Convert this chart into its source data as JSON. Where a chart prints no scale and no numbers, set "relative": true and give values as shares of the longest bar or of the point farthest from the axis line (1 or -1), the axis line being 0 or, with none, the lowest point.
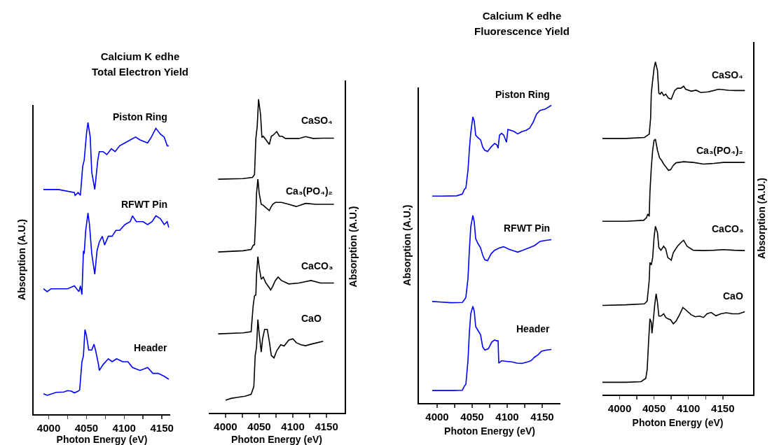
{
  "chart_data": [
    {
      "type": "line",
      "title": "Calcium K edhe\nTotal Electron Yield",
      "xlabel": "Photon Energy (eV)",
      "ylabel": "Absorption (A.U.)",
      "relative": true,
      "grid": false,
      "legend": false,
      "tick_labels": "x",
      "xlim": [
        3980,
        4161
      ],
      "xticks": [
        4000,
        {
          "value": 4025,
          "label": null
        },
        4050,
        {
          "value": 4075,
          "label": null
        },
        4100,
        {
          "value": 4125,
          "label": null
        },
        4150
      ],
      "series": [
        {
          "name": "Piston Ring",
          "color": "#0000ff",
          "x": [
            3993,
            4013,
            4034,
            4035,
            4039,
            4042,
            4045,
            4047,
            4050,
            4052,
            4055,
            4057,
            4061,
            4065,
            4067,
            4072,
            4077,
            4083,
            4088,
            4094,
            4101,
            4108,
            4115,
            4121,
            4131,
            4136,
            4142,
            4148,
            4153,
            4157,
            4159
          ],
          "values": [
            0.77,
            0.77,
            0.76,
            0.75,
            0.76,
            0.75,
            0.85,
            0.87,
            0.96,
            1.0,
            0.95,
            0.83,
            0.77,
            0.87,
            0.9,
            0.9,
            0.89,
            0.91,
            0.9,
            0.92,
            0.93,
            0.94,
            0.95,
            0.94,
            0.93,
            0.95,
            0.98,
            0.96,
            0.95,
            0.92,
            0.92
          ]
        },
        {
          "name": "RFWT Pin",
          "color": "#0000ff",
          "x": [
            3993,
            3998,
            4003,
            4017,
            4025,
            4034,
            4037,
            4040,
            4042,
            4044,
            4046,
            4047,
            4049,
            4052,
            4054,
            4057,
            4061,
            4064,
            4067,
            4071,
            4074,
            4079,
            4084,
            4089,
            4094,
            4101,
            4108,
            4111,
            4116,
            4125,
            4131,
            4137,
            4142,
            4148,
            4153,
            4157,
            4159
          ],
          "values": [
            0.43,
            0.42,
            0.43,
            0.43,
            0.43,
            0.44,
            0.43,
            0.42,
            0.44,
            0.41,
            0.56,
            0.55,
            0.63,
            0.69,
            0.65,
            0.55,
            0.48,
            0.56,
            0.59,
            0.61,
            0.58,
            0.61,
            0.61,
            0.63,
            0.63,
            0.65,
            0.66,
            0.68,
            0.66,
            0.66,
            0.65,
            0.66,
            0.68,
            0.67,
            0.65,
            0.66,
            0.64
          ]
        },
        {
          "name": "Header",
          "color": "#0000ff",
          "x": [
            3993,
            3998,
            4010,
            4020,
            4025,
            4030,
            4034,
            4039,
            4041,
            4044,
            4046,
            4048,
            4050,
            4053,
            4057,
            4060,
            4062,
            4066,
            4067,
            4072,
            4079,
            4084,
            4090,
            4098,
            4105,
            4111,
            4121,
            4131,
            4138,
            4145,
            4153,
            4159
          ],
          "values": [
            0.07,
            0.065,
            0.075,
            0.076,
            0.081,
            0.079,
            0.073,
            0.079,
            0.083,
            0.18,
            0.2,
            0.29,
            0.27,
            0.22,
            0.22,
            0.24,
            0.22,
            0.17,
            0.15,
            0.17,
            0.19,
            0.18,
            0.19,
            0.18,
            0.18,
            0.16,
            0.15,
            0.16,
            0.14,
            0.14,
            0.13,
            0.12
          ]
        }
      ]
    },
    {
      "type": "line",
      "xlabel": "Photon Energy (eV)",
      "y2label": "Absorption (A.U.)",
      "relative": true,
      "grid": false,
      "legend": false,
      "tick_labels": "x",
      "xlim": [
        3975,
        4177
      ],
      "xticks": [
        4000,
        {
          "value": 4025,
          "label": null
        },
        4050,
        {
          "value": 4075,
          "label": null
        },
        4100,
        {
          "value": 4125,
          "label": null
        },
        4150
      ],
      "series": [
        {
          "name": "CaSO₄",
          "color": "#000000",
          "axis": "y2",
          "x": [
            3989,
            4026,
            4040,
            4043,
            4045,
            4047,
            4049,
            4052,
            4054,
            4056,
            4060,
            4065,
            4068,
            4071,
            4076,
            4080,
            4084,
            4089,
            4096,
            4109,
            4119,
            4130,
            4145,
            4161
          ],
          "values": [
            0.745,
            0.747,
            0.751,
            0.76,
            0.875,
            0.913,
            1.0,
            0.951,
            0.878,
            0.882,
            0.871,
            0.856,
            0.882,
            0.886,
            0.897,
            0.882,
            0.882,
            0.875,
            0.875,
            0.875,
            0.881,
            0.875,
            0.876,
            0.876
          ]
        },
        {
          "name": "Ca₃(PO₄)₂",
          "color": "#000000",
          "axis": "y2",
          "x": [
            3989,
            4026,
            4038,
            4041,
            4043,
            4045,
            4046,
            4048,
            4050,
            4053,
            4056,
            4060,
            4065,
            4067,
            4070,
            4074,
            4083,
            4094,
            4105,
            4119,
            4134,
            4161
          ],
          "values": [
            0.513,
            0.517,
            0.521,
            0.534,
            0.536,
            0.631,
            0.7,
            0.745,
            0.7,
            0.665,
            0.662,
            0.654,
            0.645,
            0.654,
            0.665,
            0.671,
            0.671,
            0.665,
            0.658,
            0.668,
            0.665,
            0.665
          ]
        },
        {
          "name": "CaCO₃",
          "color": "#000000",
          "axis": "y2",
          "x": [
            3989,
            4026,
            4038,
            4041,
            4043,
            4045,
            4046,
            4048,
            4050,
            4053,
            4056,
            4060,
            4065,
            4067,
            4070,
            4074,
            4078,
            4083,
            4094,
            4109,
            4127,
            4141,
            4161
          ],
          "values": [
            0.252,
            0.255,
            0.259,
            0.342,
            0.373,
            0.376,
            0.441,
            0.498,
            0.464,
            0.426,
            0.433,
            0.414,
            0.399,
            0.392,
            0.403,
            0.422,
            0.433,
            0.422,
            0.411,
            0.414,
            0.422,
            0.414,
            0.414
          ]
        },
        {
          "name": "CaO",
          "color": "#000000",
          "axis": "y2",
          "x": [
            4000,
            4008,
            4017,
            4029,
            4038,
            4042,
            4044,
            4046,
            4048,
            4050,
            4053,
            4055,
            4058,
            4062,
            4065,
            4068,
            4072,
            4076,
            4082,
            4087,
            4094,
            4100,
            4105,
            4112,
            4119,
            4127,
            4137,
            4145
          ],
          "values": [
            0.04,
            0.046,
            0.049,
            0.053,
            0.059,
            0.084,
            0.183,
            0.209,
            0.297,
            0.251,
            0.194,
            0.236,
            0.266,
            0.266,
            0.228,
            0.183,
            0.175,
            0.198,
            0.217,
            0.213,
            0.232,
            0.236,
            0.224,
            0.217,
            0.214,
            0.219,
            0.224,
            0.228
          ]
        }
      ]
    },
    {
      "type": "line",
      "title": "Calcium K edhe\nFluorescence Yield",
      "xlabel": "Photon Energy (eV)",
      "ylabel": "Absorption (A.U.)",
      "relative": true,
      "grid": false,
      "legend": false,
      "tick_labels": "x",
      "xlim": [
        3974,
        4176
      ],
      "xticks": [
        4000,
        {
          "value": 4025,
          "label": null
        },
        4050,
        {
          "value": 4075,
          "label": null
        },
        4100,
        {
          "value": 4125,
          "label": null
        },
        4150
      ],
      "series": [
        {
          "name": "Piston Ring",
          "color": "#0000ff",
          "x": [
            3993,
            4006,
            4028,
            4036,
            4039,
            4041,
            4044,
            4046,
            4048,
            4051,
            4053,
            4055,
            4058,
            4062,
            4065,
            4068,
            4072,
            4077,
            4082,
            4085,
            4087,
            4089,
            4092,
            4095,
            4099,
            4101,
            4105,
            4110,
            4115,
            4121,
            4127,
            4132,
            4137,
            4142,
            4147,
            4154,
            4163
          ],
          "values": [
            0.695,
            0.695,
            0.696,
            0.702,
            0.718,
            0.722,
            0.781,
            0.852,
            0.908,
            0.961,
            0.947,
            0.9,
            0.892,
            0.884,
            0.86,
            0.849,
            0.845,
            0.86,
            0.872,
            0.868,
            0.856,
            0.9,
            0.906,
            0.9,
            0.876,
            0.919,
            0.916,
            0.912,
            0.904,
            0.912,
            0.916,
            0.923,
            0.943,
            0.971,
            0.983,
            0.987,
            1.0
          ]
        },
        {
          "name": "RFWT Pin",
          "color": "#0000ff",
          "x": [
            3993,
            4006,
            4020,
            4036,
            4039,
            4041,
            4044,
            4046,
            4048,
            4051,
            4053,
            4055,
            4058,
            4062,
            4065,
            4068,
            4072,
            4077,
            4082,
            4089,
            4095,
            4102,
            4107,
            4115,
            4122,
            4131,
            4139,
            4147,
            4154,
            4163
          ],
          "values": [
            0.341,
            0.339,
            0.337,
            0.338,
            0.347,
            0.355,
            0.418,
            0.513,
            0.592,
            0.63,
            0.608,
            0.552,
            0.537,
            0.521,
            0.497,
            0.481,
            0.478,
            0.501,
            0.513,
            0.521,
            0.525,
            0.517,
            0.513,
            0.507,
            0.513,
            0.521,
            0.529,
            0.543,
            0.546,
            0.549
          ]
        },
        {
          "name": "Header",
          "color": "#0000ff",
          "x": [
            3993,
            4006,
            4023,
            4036,
            4039,
            4041,
            4044,
            4046,
            4048,
            4051,
            4053,
            4055,
            4058,
            4062,
            4065,
            4068,
            4073,
            4078,
            4082,
            4085,
            4087,
            4088,
            4092,
            4099,
            4107,
            4114,
            4121,
            4129,
            4134,
            4139,
            4144,
            4149,
            4156,
            4163
          ],
          "values": [
            0.042,
            0.042,
            0.042,
            0.043,
            0.057,
            0.063,
            0.142,
            0.237,
            0.3,
            0.325,
            0.308,
            0.257,
            0.245,
            0.229,
            0.189,
            0.178,
            0.182,
            0.205,
            0.212,
            0.209,
            0.209,
            0.134,
            0.142,
            0.14,
            0.138,
            0.134,
            0.133,
            0.138,
            0.142,
            0.154,
            0.162,
            0.174,
            0.178,
            0.18
          ]
        }
      ]
    },
    {
      "type": "line",
      "xlabel": "Photon Energy (eV)",
      "y2label": "Absorption (A.U.)",
      "relative": true,
      "grid": false,
      "legend": false,
      "tick_labels": "x",
      "xlim": [
        3975,
        4194
      ],
      "xticks": [
        4000,
        {
          "value": 4025,
          "label": null
        },
        4050,
        {
          "value": 4075,
          "label": null
        },
        4100,
        {
          "value": 4125,
          "label": null
        },
        4150
      ],
      "series": [
        {
          "name": "CaSO₄",
          "color": "#000000",
          "axis": "y2",
          "x": [
            3975,
            4009,
            4036,
            4040,
            4043,
            4045,
            4046,
            4048,
            4050,
            4052,
            4055,
            4057,
            4059,
            4061,
            4064,
            4067,
            4071,
            4075,
            4080,
            4084,
            4089,
            4093,
            4096,
            4104,
            4111,
            4118,
            4129,
            4144,
            4158,
            4169,
            4182
          ],
          "values": [
            0.77,
            0.77,
            0.773,
            0.779,
            0.783,
            0.831,
            0.906,
            0.944,
            0.981,
            1.0,
            0.974,
            0.906,
            0.903,
            0.91,
            0.899,
            0.903,
            0.891,
            0.888,
            0.914,
            0.921,
            0.921,
            0.927,
            0.918,
            0.912,
            0.915,
            0.908,
            0.91,
            0.918,
            0.915,
            0.914,
            0.914
          ]
        },
        {
          "name": "Ca₃(PO₄)₂",
          "color": "#000000",
          "axis": "y2",
          "x": [
            3975,
            4009,
            4035,
            4039,
            4041,
            4043,
            4044,
            4046,
            4048,
            4050,
            4052,
            4055,
            4058,
            4061,
            4064,
            4067,
            4071,
            4074,
            4078,
            4082,
            4086,
            4093,
            4107,
            4122,
            4137,
            4151,
            4166,
            4182
          ],
          "values": [
            0.521,
            0.521,
            0.524,
            0.532,
            0.543,
            0.536,
            0.607,
            0.682,
            0.734,
            0.764,
            0.768,
            0.734,
            0.712,
            0.704,
            0.693,
            0.685,
            0.674,
            0.676,
            0.689,
            0.697,
            0.698,
            0.7,
            0.698,
            0.693,
            0.695,
            0.698,
            0.698,
            0.698
          ]
        },
        {
          "name": "CaCO₃",
          "color": "#000000",
          "axis": "y2",
          "x": [
            3975,
            4009,
            4036,
            4040,
            4043,
            4044,
            4046,
            4048,
            4050,
            4052,
            4055,
            4057,
            4060,
            4064,
            4067,
            4070,
            4075,
            4078,
            4084,
            4089,
            4093,
            4098,
            4107,
            4122,
            4137,
            4151,
            4166,
            4182
          ],
          "values": [
            0.268,
            0.27,
            0.273,
            0.281,
            0.345,
            0.397,
            0.39,
            0.412,
            0.472,
            0.506,
            0.487,
            0.442,
            0.434,
            0.446,
            0.438,
            0.412,
            0.404,
            0.427,
            0.446,
            0.457,
            0.464,
            0.446,
            0.434,
            0.433,
            0.434,
            0.436,
            0.434,
            0.433
          ]
        },
        {
          "name": "CaO",
          "color": "#000000",
          "axis": "y2",
          "x": [
            3975,
            4009,
            4031,
            4038,
            4040,
            4042,
            4044,
            4046,
            4047,
            4049,
            4051,
            4053,
            4055,
            4057,
            4060,
            4064,
            4067,
            4070,
            4074,
            4078,
            4082,
            4087,
            4092,
            4096,
            4104,
            4110,
            4116,
            4122,
            4127,
            4133,
            4140,
            4147,
            4155,
            4164,
            4173,
            4182
          ],
          "values": [
            0.037,
            0.037,
            0.039,
            0.049,
            0.075,
            0.157,
            0.228,
            0.217,
            0.184,
            0.225,
            0.27,
            0.303,
            0.277,
            0.236,
            0.236,
            0.243,
            0.232,
            0.228,
            0.225,
            0.213,
            0.221,
            0.24,
            0.262,
            0.255,
            0.24,
            0.234,
            0.236,
            0.232,
            0.243,
            0.247,
            0.237,
            0.243,
            0.246,
            0.243,
            0.243,
            0.249
          ]
        }
      ]
    }
  ]
}
